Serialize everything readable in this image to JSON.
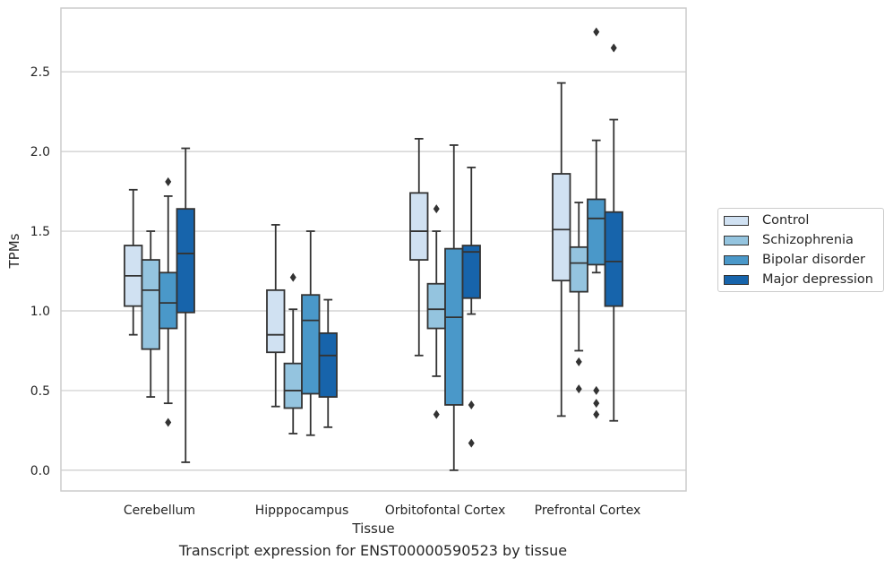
{
  "chart_data": {
    "type": "box",
    "title": "Transcript expression for ENST00000590523 by tissue",
    "xlabel": "Tissue",
    "ylabel": "TPMs",
    "ylim": [
      -0.13,
      2.9
    ],
    "yticks": [
      "0.0",
      "0.5",
      "1.0",
      "1.5",
      "2.0",
      "2.5"
    ],
    "ytick_values": [
      0,
      0.5,
      1.0,
      1.5,
      2.0,
      2.5
    ],
    "grid": "horizontal",
    "legend_placement": "right",
    "categories": [
      "Cerebellum",
      "Hipppocampus",
      "Orbitofontal Cortex",
      "Prefrontal Cortex"
    ],
    "series": [
      {
        "name": "Control",
        "color": "#d0e1f2",
        "boxes": [
          {
            "whislo": 0.85,
            "q1": 1.03,
            "med": 1.22,
            "q3": 1.41,
            "whishi": 1.76,
            "fliers": []
          },
          {
            "whislo": 0.4,
            "q1": 0.74,
            "med": 0.85,
            "q3": 1.13,
            "whishi": 1.54,
            "fliers": []
          },
          {
            "whislo": 0.72,
            "q1": 1.32,
            "med": 1.5,
            "q3": 1.74,
            "whishi": 2.08,
            "fliers": []
          },
          {
            "whislo": 0.34,
            "q1": 1.19,
            "med": 1.51,
            "q3": 1.86,
            "whishi": 2.43,
            "fliers": []
          }
        ]
      },
      {
        "name": "Schizophrenia",
        "color": "#94c4df",
        "boxes": [
          {
            "whislo": 0.46,
            "q1": 0.76,
            "med": 1.13,
            "q3": 1.32,
            "whishi": 1.5,
            "fliers": []
          },
          {
            "whislo": 0.23,
            "q1": 0.39,
            "med": 0.5,
            "q3": 0.67,
            "whishi": 1.01,
            "fliers": [
              1.21
            ]
          },
          {
            "whislo": 0.59,
            "q1": 0.89,
            "med": 1.01,
            "q3": 1.17,
            "whishi": 1.5,
            "fliers": [
              1.64,
              0.35
            ]
          },
          {
            "whislo": 0.75,
            "q1": 1.12,
            "med": 1.3,
            "q3": 1.4,
            "whishi": 1.68,
            "fliers": [
              0.68,
              0.51
            ]
          }
        ]
      },
      {
        "name": "Bipolar disorder",
        "color": "#4a98c9",
        "boxes": [
          {
            "whislo": 0.42,
            "q1": 0.89,
            "med": 1.05,
            "q3": 1.24,
            "whishi": 1.72,
            "fliers": [
              1.81,
              0.3
            ]
          },
          {
            "whislo": 0.22,
            "q1": 0.48,
            "med": 0.94,
            "q3": 1.1,
            "whishi": 1.5,
            "fliers": []
          },
          {
            "whislo": 0.0,
            "q1": 0.41,
            "med": 0.96,
            "q3": 1.39,
            "whishi": 2.04,
            "fliers": []
          },
          {
            "whislo": 1.24,
            "q1": 1.29,
            "med": 1.58,
            "q3": 1.7,
            "whishi": 2.07,
            "fliers": [
              2.75,
              0.5,
              0.42,
              0.35
            ]
          }
        ]
      },
      {
        "name": "Major depression",
        "color": "#1764ab",
        "boxes": [
          {
            "whislo": 0.05,
            "q1": 0.99,
            "med": 1.36,
            "q3": 1.64,
            "whishi": 2.02,
            "fliers": []
          },
          {
            "whislo": 0.27,
            "q1": 0.46,
            "med": 0.72,
            "q3": 0.86,
            "whishi": 1.07,
            "fliers": []
          },
          {
            "whislo": 0.98,
            "q1": 1.08,
            "med": 1.37,
            "q3": 1.41,
            "whishi": 1.9,
            "fliers": [
              0.41,
              0.17
            ]
          },
          {
            "whislo": 0.31,
            "q1": 1.03,
            "med": 1.31,
            "q3": 1.62,
            "whishi": 2.2,
            "fliers": [
              2.65
            ]
          }
        ]
      }
    ]
  },
  "legend": {
    "items": [
      {
        "label": "Control",
        "color": "#d0e1f2"
      },
      {
        "label": "Schizophrenia",
        "color": "#94c4df"
      },
      {
        "label": "Bipolar disorder",
        "color": "#4a98c9"
      },
      {
        "label": "Major depression",
        "color": "#1764ab"
      }
    ]
  }
}
